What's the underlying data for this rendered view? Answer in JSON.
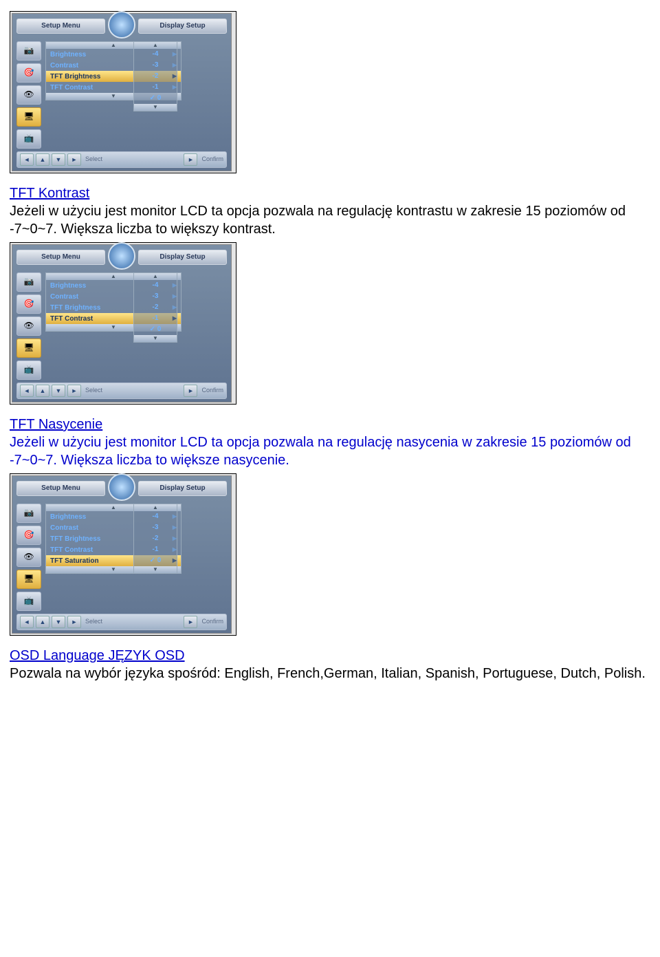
{
  "osd_common": {
    "left_pill": "Setup Menu",
    "right_pill": "Display Setup",
    "bottom_select": "Select",
    "bottom_confirm": "Confirm",
    "arrow_up": "▲",
    "arrow_down": "▼",
    "arrow_left": "◄",
    "arrow_right": "►"
  },
  "osd1": {
    "menu": [
      {
        "label": "Brightness",
        "hl": false
      },
      {
        "label": "Contrast",
        "hl": false
      },
      {
        "label": "TFT Brightness",
        "hl": true
      },
      {
        "label": "TFT Contrast",
        "hl": false
      }
    ],
    "values": [
      "-4",
      "-3",
      "-2",
      "-1",
      "✓ 0"
    ]
  },
  "osd2": {
    "menu": [
      {
        "label": "Brightness",
        "hl": false
      },
      {
        "label": "Contrast",
        "hl": false
      },
      {
        "label": "TFT Brightness",
        "hl": false
      },
      {
        "label": "TFT Contrast",
        "hl": true
      }
    ],
    "values": [
      "-4",
      "-3",
      "-2",
      "-1",
      "✓ 0"
    ]
  },
  "osd3": {
    "menu": [
      {
        "label": "Brightness",
        "hl": false
      },
      {
        "label": "Contrast",
        "hl": false
      },
      {
        "label": "TFT Brightness",
        "hl": false
      },
      {
        "label": "TFT Contrast",
        "hl": false
      },
      {
        "label": "TFT Saturation",
        "hl": true
      }
    ],
    "values": [
      "-4",
      "-3",
      "-2",
      "-1",
      "✓ 0"
    ]
  },
  "sections": {
    "s1": {
      "heading": "TFT Kontrast",
      "text": "Jeżeli w użyciu jest monitor LCD ta opcja pozwala na regulację kontrastu w zakresie 15 poziomów od -7~0~7. Większa liczba to większy kontrast."
    },
    "s2": {
      "heading": "TFT Nasycenie",
      "text": "Jeżeli w użyciu jest monitor LCD ta opcja pozwala na regulację nasycenia w zakresie 15 poziomów od -7~0~7. Większa liczba to większe nasycenie."
    },
    "s3": {
      "heading": "OSD Language JĘZYK OSD",
      "text": "Pozwala na wybór języka spośród: English, French,German, Italian, Spanish, Portuguese, Dutch, Polish."
    }
  }
}
